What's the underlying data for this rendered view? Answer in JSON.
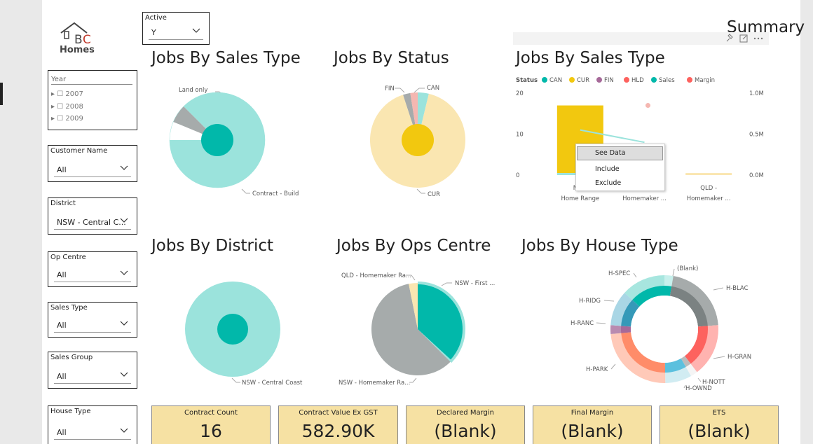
{
  "logo": {
    "top": "BC",
    "bottom": "Homes"
  },
  "page_title": "Summary",
  "active_slicer": {
    "title": "Active",
    "value": "Y"
  },
  "year_slicer": {
    "title": "Year",
    "items": [
      "2007",
      "2008",
      "2009"
    ]
  },
  "slicers": [
    {
      "title": "Customer Name",
      "value": "All"
    },
    {
      "title": "District",
      "value": "NSW - Central C..."
    },
    {
      "title": "Op Centre",
      "value": "All"
    },
    {
      "title": "Sales Type",
      "value": "All"
    },
    {
      "title": "Sales Group",
      "value": "All"
    },
    {
      "title": "House Type",
      "value": "All"
    }
  ],
  "chart_titles": {
    "jobs_by_sales_type_pie": "Jobs By Sales Type",
    "jobs_by_status": "Jobs By Status",
    "jobs_by_sales_type_bar": "Jobs By Sales Type",
    "jobs_by_district": "Jobs By District",
    "jobs_by_ops_centre": "Jobs By Ops Centre",
    "jobs_by_house_type": "Jobs By House Type"
  },
  "context_menu": {
    "items": [
      "See Data",
      "Include",
      "Exclude"
    ]
  },
  "cards": [
    {
      "title": "Contract Count",
      "value": "16"
    },
    {
      "title": "Contract Value Ex GST",
      "value": "582.90K"
    },
    {
      "title": "Declared Margin",
      "value": "(Blank)"
    },
    {
      "title": "Final Margin",
      "value": "(Blank)"
    },
    {
      "title": "ETS",
      "value": "(Blank)"
    }
  ],
  "colors": {
    "teal": "#01B8AA",
    "light_teal": "#9BE3DC",
    "yellow": "#F2C80F",
    "light_yellow": "#FAE6B1",
    "gray": "#A6ABAB",
    "red": "#FD625E",
    "purple": "#A66999",
    "card_bg": "#F6E1A3"
  },
  "chart_data": [
    {
      "type": "pie",
      "title": "Jobs By Sales Type",
      "labels": [
        "Contract - Build",
        "Land only",
        ""
      ],
      "values": [
        14,
        1,
        1
      ]
    },
    {
      "type": "pie",
      "title": "Jobs By Status",
      "labels": [
        "CUR",
        "FIN",
        "",
        "CAN"
      ],
      "values": [
        14.6,
        0.4,
        0.4,
        0.6
      ]
    },
    {
      "type": "bar",
      "title": "Jobs By Sales Type",
      "legend_title": "Status",
      "legend": [
        "CAN",
        "CUR",
        "FIN",
        "HLD",
        "Sales",
        "Margin"
      ],
      "legend_position": "top-left",
      "categories": [
        "NSW - Home Range",
        "Homemaker ...",
        "QLD - Homemaker ..."
      ],
      "category_lines": [
        [
          "NSW",
          "Home Range"
        ],
        [
          "",
          "Homemaker ..."
        ],
        [
          "QLD -",
          "Homemaker ..."
        ]
      ],
      "y_ticks": [
        "0",
        "10",
        "20"
      ],
      "y2_ticks": [
        "0.0M",
        "0.5M",
        "1.0M"
      ],
      "ylim": [
        0,
        20
      ],
      "y2lim": [
        0,
        1000000
      ],
      "series": [
        {
          "name": "CAN",
          "values": [
            0.5,
            0,
            0
          ]
        },
        {
          "name": "CUR",
          "values": [
            16.5,
            0,
            0.5
          ]
        },
        {
          "name": "Sales",
          "values": [
            550000,
            400000,
            null
          ]
        },
        {
          "name": "Margin",
          "values": [
            null,
            850000,
            null
          ]
        }
      ]
    },
    {
      "type": "pie",
      "title": "Jobs By District",
      "labels": [
        "NSW - Central Coast"
      ],
      "values": [
        16
      ]
    },
    {
      "type": "pie",
      "title": "Jobs By Ops Centre",
      "labels": [
        "NSW - First ...",
        "NSW - Homemaker Ra...",
        "QLD - Homemaker Ra..."
      ],
      "values": [
        6,
        9.5,
        0.5
      ]
    },
    {
      "type": "pie",
      "title": "Jobs By House Type",
      "labels": [
        "(Blank)",
        "H-BLAC",
        "H-GRAN",
        "H-NOTT",
        "H-OWND",
        "H-PARK",
        "H-RANC",
        "H-RIDG",
        "H-SPEC"
      ],
      "values": [
        0.5,
        4,
        3,
        0.4,
        1.5,
        4.5,
        0.5,
        2,
        2.5
      ]
    }
  ]
}
